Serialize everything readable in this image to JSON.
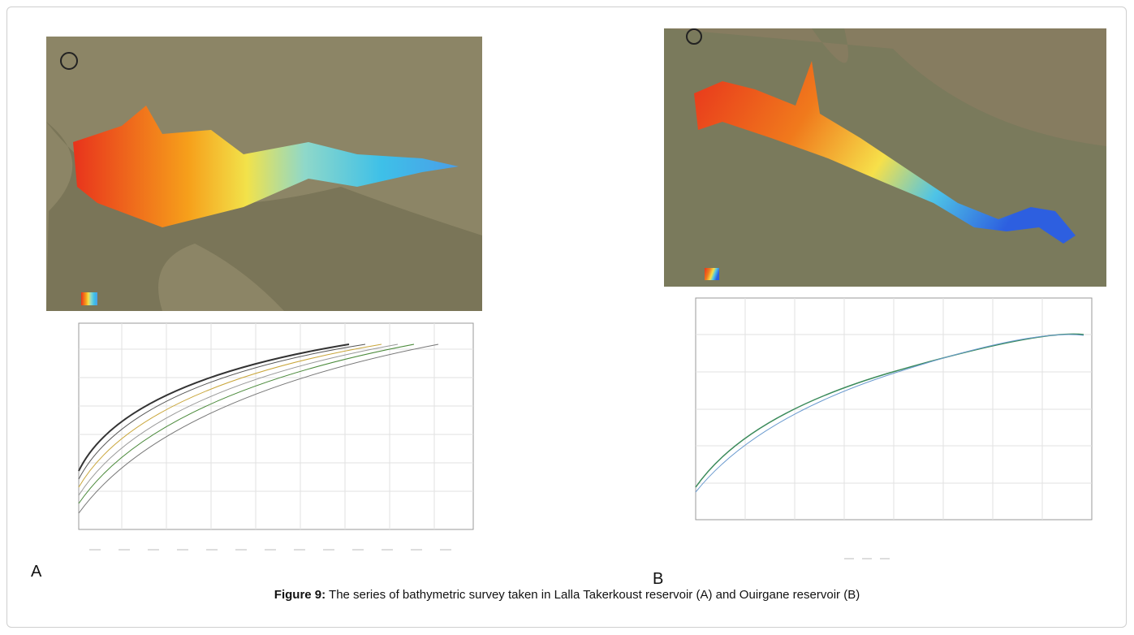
{
  "figure": {
    "panels": [
      {
        "label": "A"
      },
      {
        "label": "B"
      }
    ],
    "caption": {
      "label": "Figure 9:",
      "text": " The series of bathymetric survey taken in Lalla Takerkoust reservoir (A) and Ouirgane reservoir (B)"
    }
  }
}
